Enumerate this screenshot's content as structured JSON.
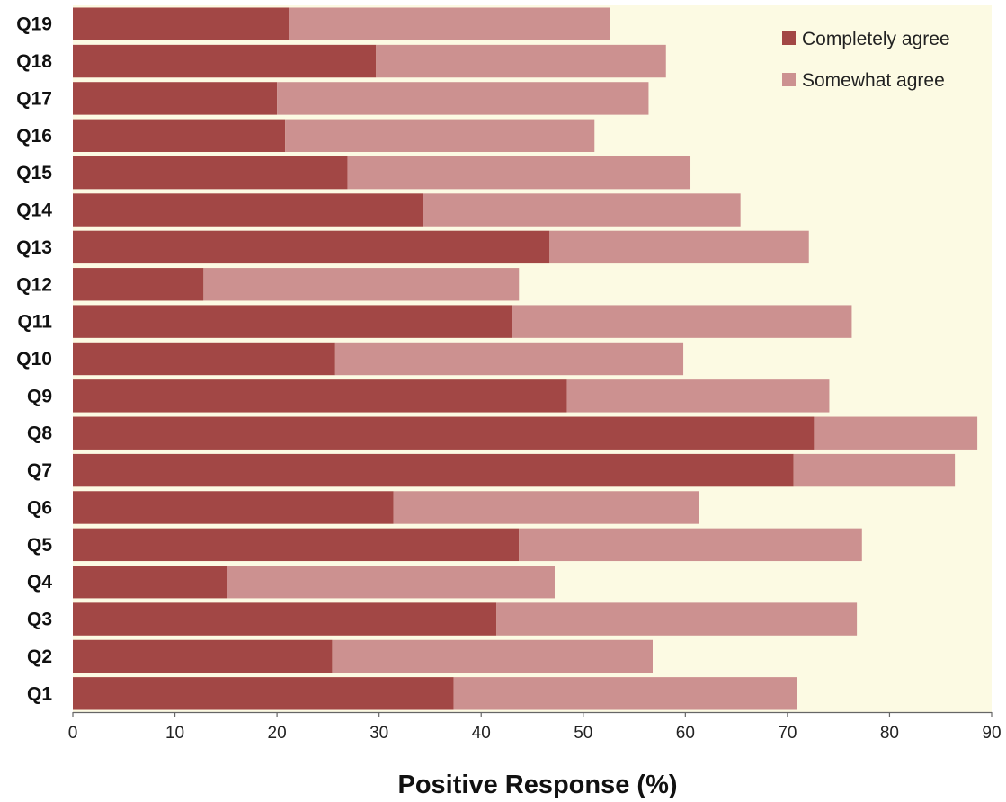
{
  "chart_data": {
    "type": "bar",
    "orientation": "horizontal",
    "stacked": true,
    "categories": [
      "Q1",
      "Q2",
      "Q3",
      "Q4",
      "Q5",
      "Q6",
      "Q7",
      "Q8",
      "Q9",
      "Q10",
      "Q11",
      "Q12",
      "Q13",
      "Q14",
      "Q15",
      "Q16",
      "Q17",
      "Q18",
      "Q19"
    ],
    "series": [
      {
        "name": "Completely agree",
        "color": "#a24745",
        "values": [
          37.3,
          25.4,
          41.5,
          15.1,
          43.7,
          31.4,
          70.6,
          72.6,
          48.4,
          25.7,
          43.0,
          12.8,
          46.7,
          34.3,
          26.9,
          20.8,
          20.0,
          29.7,
          21.2
        ]
      },
      {
        "name": "Somewhat agree",
        "color": "#cc9190",
        "values": [
          33.6,
          31.4,
          35.3,
          32.1,
          33.6,
          29.9,
          15.8,
          16.0,
          25.7,
          34.1,
          33.3,
          30.9,
          25.4,
          31.1,
          33.6,
          30.3,
          36.4,
          28.4,
          31.4
        ]
      }
    ],
    "xlabel": "Positive Response (%)",
    "ylabel": "",
    "xlim": [
      0,
      90
    ],
    "xticks": [
      0,
      10,
      20,
      30,
      40,
      50,
      60,
      70,
      80,
      90
    ],
    "plot_background": "#fcfae3",
    "legend_position": "top-right",
    "grid": false
  }
}
